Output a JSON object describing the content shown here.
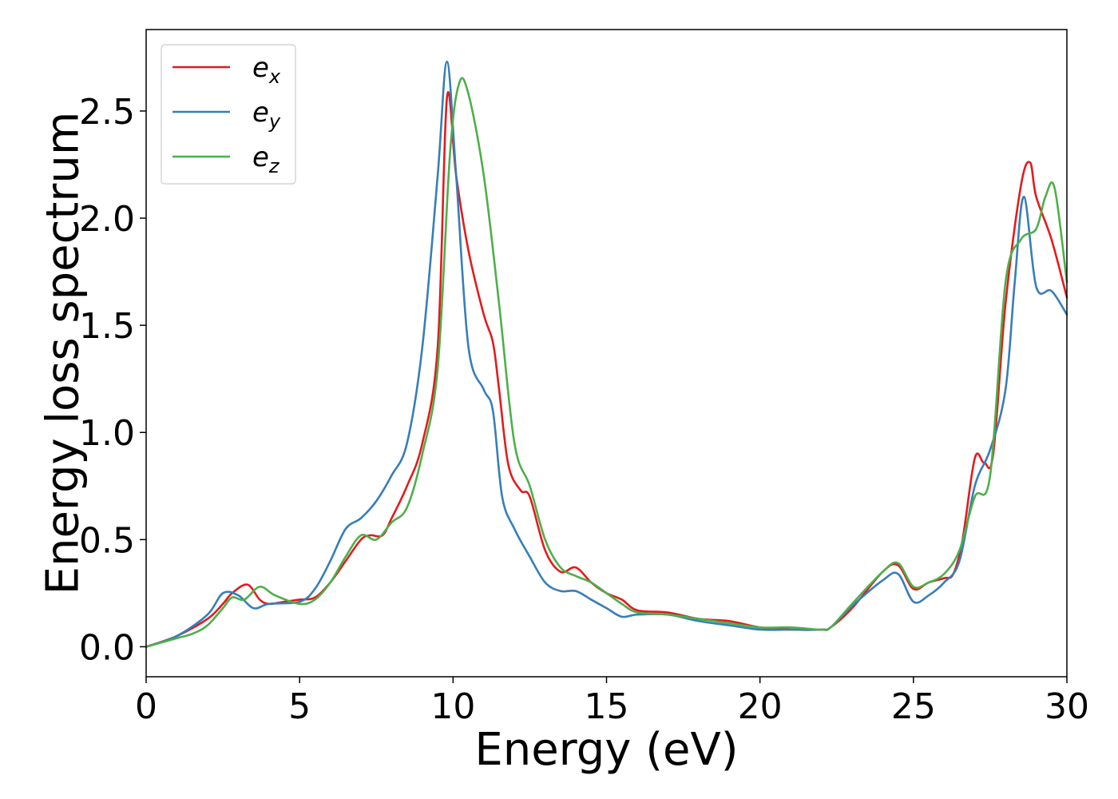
{
  "chart_data": {
    "type": "line",
    "xlabel": "Energy (eV)",
    "ylabel": "Energy loss spectrum",
    "xlim": [
      0,
      30
    ],
    "ylim": [
      -0.14,
      2.88
    ],
    "xticks": [
      0,
      5,
      10,
      15,
      20,
      25,
      30
    ],
    "xtick_labels": [
      "0",
      "5",
      "10",
      "15",
      "20",
      "25",
      "30"
    ],
    "yticks": [
      0.0,
      0.5,
      1.0,
      1.5,
      2.0,
      2.5
    ],
    "ytick_labels": [
      "0.0",
      "0.5",
      "1.0",
      "1.5",
      "2.0",
      "2.5"
    ],
    "grid": false,
    "legend_position": "top-left",
    "series": [
      {
        "name": "e_x",
        "label_base": "e",
        "label_sub": "x",
        "color": "#e41a1c",
        "x": [
          0,
          1,
          2,
          2.5,
          2.8,
          3.3,
          3.7,
          4.0,
          4.5,
          5.0,
          5.5,
          6.0,
          6.5,
          7.0,
          7.3,
          7.7,
          8.0,
          8.5,
          9.0,
          9.5,
          9.8,
          10.1,
          10.5,
          11.0,
          11.3,
          11.5,
          11.8,
          12.2,
          12.5,
          13.0,
          13.5,
          14.0,
          14.5,
          15.0,
          15.5,
          16.0,
          17.0,
          18.0,
          19.0,
          20.0,
          21.0,
          22.0,
          22.3,
          23.0,
          24.0,
          24.5,
          25.0,
          25.5,
          26.0,
          26.3,
          26.6,
          27.0,
          27.3,
          27.6,
          28.0,
          28.5,
          28.8,
          29.0,
          29.5,
          30.0
        ],
        "y": [
          0.0,
          0.05,
          0.13,
          0.2,
          0.25,
          0.29,
          0.22,
          0.2,
          0.21,
          0.22,
          0.23,
          0.3,
          0.4,
          0.5,
          0.52,
          0.52,
          0.6,
          0.75,
          0.95,
          1.4,
          2.56,
          2.2,
          1.85,
          1.55,
          1.42,
          1.2,
          0.85,
          0.73,
          0.7,
          0.45,
          0.35,
          0.37,
          0.3,
          0.25,
          0.22,
          0.17,
          0.16,
          0.13,
          0.12,
          0.09,
          0.08,
          0.08,
          0.09,
          0.18,
          0.35,
          0.38,
          0.27,
          0.3,
          0.32,
          0.34,
          0.5,
          0.88,
          0.86,
          0.9,
          1.6,
          2.15,
          2.26,
          2.1,
          1.9,
          1.63
        ]
      },
      {
        "name": "e_y",
        "label_base": "e",
        "label_sub": "y",
        "color": "#377eb8",
        "x": [
          0,
          1,
          2,
          2.5,
          3.0,
          3.5,
          4.0,
          5.0,
          5.5,
          6.0,
          6.5,
          7.0,
          7.5,
          8.0,
          8.5,
          9.0,
          9.5,
          9.8,
          10.1,
          10.5,
          11.0,
          11.3,
          11.6,
          12.0,
          12.5,
          13.0,
          13.5,
          14.0,
          14.5,
          15.0,
          15.5,
          16.0,
          17.0,
          18.0,
          19.0,
          20.0,
          21.0,
          22.0,
          22.3,
          23.0,
          24.0,
          24.5,
          25.0,
          25.5,
          26.0,
          26.5,
          27.0,
          27.5,
          28.0,
          28.3,
          28.6,
          29.0,
          29.5,
          30.0
        ],
        "y": [
          0.0,
          0.05,
          0.15,
          0.25,
          0.24,
          0.18,
          0.2,
          0.21,
          0.27,
          0.4,
          0.55,
          0.6,
          0.68,
          0.8,
          0.95,
          1.4,
          2.2,
          2.73,
          2.2,
          1.4,
          1.2,
          1.1,
          0.7,
          0.55,
          0.42,
          0.3,
          0.26,
          0.26,
          0.22,
          0.18,
          0.14,
          0.15,
          0.15,
          0.12,
          0.1,
          0.08,
          0.08,
          0.08,
          0.09,
          0.19,
          0.31,
          0.34,
          0.21,
          0.24,
          0.3,
          0.4,
          0.75,
          0.92,
          1.2,
          1.7,
          2.1,
          1.68,
          1.66,
          1.55
        ]
      },
      {
        "name": "e_z",
        "label_base": "e",
        "label_sub": "z",
        "color": "#4daf4a",
        "x": [
          0,
          1,
          1.5,
          2.0,
          2.5,
          2.8,
          3.2,
          3.7,
          4.2,
          5.0,
          5.5,
          6.0,
          6.5,
          7.0,
          7.5,
          8.0,
          8.5,
          9.0,
          9.5,
          9.9,
          10.2,
          10.5,
          11.0,
          11.5,
          12.0,
          12.5,
          13.0,
          13.5,
          14.0,
          14.5,
          15.0,
          15.5,
          16.0,
          17.0,
          18.0,
          19.0,
          20.0,
          21.0,
          22.0,
          22.3,
          23.0,
          24.0,
          24.5,
          25.0,
          25.5,
          26.0,
          26.5,
          27.0,
          27.5,
          28.0,
          28.5,
          29.0,
          29.3,
          29.6,
          30.0
        ],
        "y": [
          0.0,
          0.04,
          0.06,
          0.1,
          0.18,
          0.23,
          0.22,
          0.28,
          0.24,
          0.2,
          0.22,
          0.3,
          0.42,
          0.52,
          0.5,
          0.58,
          0.65,
          0.9,
          1.3,
          2.3,
          2.63,
          2.58,
          2.2,
          1.6,
          0.95,
          0.75,
          0.5,
          0.37,
          0.33,
          0.3,
          0.25,
          0.2,
          0.16,
          0.15,
          0.13,
          0.11,
          0.09,
          0.09,
          0.08,
          0.09,
          0.2,
          0.35,
          0.39,
          0.28,
          0.3,
          0.34,
          0.45,
          0.7,
          0.8,
          1.7,
          1.9,
          1.95,
          2.1,
          2.14,
          1.7
        ]
      }
    ]
  }
}
